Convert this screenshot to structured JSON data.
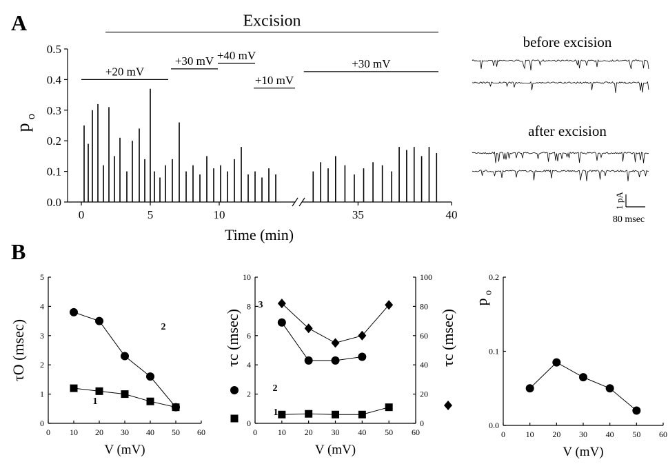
{
  "panel_labels": {
    "a": "A",
    "b": "B"
  },
  "traces": {
    "before": "before excision",
    "after": "after excision",
    "scale_y": "1 pA",
    "scale_x": "80 msec"
  },
  "chart_data": [
    {
      "type": "bar",
      "xlabel": "Time (min)",
      "ylabel": "p",
      "ylabel_sub": "o",
      "color": "#000000",
      "xlim": [
        [
          -1,
          15.5
        ],
        [
          32,
          40
        ]
      ],
      "xticks": [
        0,
        5,
        10,
        35,
        40
      ],
      "ylim": [
        0,
        0.5
      ],
      "yticks": [
        {
          "value": 0,
          "label": "0.0"
        },
        0.1,
        0.2,
        0.3,
        0.4,
        0.5
      ],
      "x": [
        0.2,
        0.5,
        0.8,
        1.2,
        1.6,
        2.0,
        2.4,
        2.8,
        3.3,
        3.7,
        4.2,
        4.6,
        5.0,
        5.3,
        5.7,
        6.1,
        6.6,
        7.1,
        7.6,
        8.1,
        8.6,
        9.1,
        9.6,
        10.1,
        10.6,
        11.1,
        11.6,
        12.1,
        12.6,
        13.1,
        13.6,
        14.1,
        32.6,
        33.0,
        33.4,
        33.8,
        34.3,
        34.8,
        35.3,
        35.8,
        36.3,
        36.8,
        37.2,
        37.6,
        38.0,
        38.4,
        38.8,
        39.2
      ],
      "values": [
        0.25,
        0.19,
        0.3,
        0.32,
        0.12,
        0.31,
        0.15,
        0.21,
        0.1,
        0.2,
        0.24,
        0.14,
        0.37,
        0.1,
        0.08,
        0.12,
        0.14,
        0.26,
        0.1,
        0.12,
        0.09,
        0.15,
        0.11,
        0.12,
        0.1,
        0.14,
        0.18,
        0.09,
        0.1,
        0.08,
        0.11,
        0.09,
        0.1,
        0.13,
        0.11,
        0.15,
        0.12,
        0.09,
        0.11,
        0.13,
        0.12,
        0.1,
        0.18,
        0.17,
        0.18,
        0.15,
        0.18,
        0.16
      ],
      "annotations": [
        {
          "text": "Excision",
          "x": [
            1.75,
            39.3
          ],
          "y": 0.555
        },
        {
          "text": "+20 mV",
          "x": [
            0,
            6.3
          ],
          "y": 0.4
        },
        {
          "text": "+30 mV",
          "x": [
            6.5,
            9.9
          ],
          "y": 0.435
        },
        {
          "text": "+40 mV",
          "x": [
            9.9,
            12.6
          ],
          "y": 0.453
        },
        {
          "text": "+10 mV",
          "x": [
            12.5,
            15.5
          ],
          "y": 0.372
        },
        {
          "text": "+30 mV",
          "x": [
            32.1,
            39.3
          ],
          "y": 0.426
        }
      ]
    },
    {
      "type": "line",
      "xlabel": "V (mV)",
      "ylabel": "τO (msec)",
      "xlim": [
        0,
        60
      ],
      "xticks": [
        0,
        10,
        20,
        30,
        40,
        50,
        60
      ],
      "ylim": [
        0,
        5
      ],
      "yticks": [
        0,
        1,
        2,
        3,
        4,
        5
      ],
      "series": [
        {
          "name": "2",
          "marker": "circle",
          "color": "#000000",
          "x": [
            10,
            20,
            30,
            40,
            50
          ],
          "values": [
            3.8,
            3.5,
            2.3,
            1.6,
            0.55
          ]
        },
        {
          "name": "1",
          "marker": "square",
          "color": "#000000",
          "x": [
            10,
            20,
            30,
            40,
            50
          ],
          "values": [
            1.2,
            1.1,
            1.0,
            0.75,
            0.55
          ]
        }
      ]
    },
    {
      "type": "line",
      "xlabel": "V (mV)",
      "ylabel": "τc (msec)",
      "y2label": "τc (msec)",
      "xlim": [
        0,
        60
      ],
      "xticks": [
        0,
        10,
        20,
        30,
        40,
        50,
        60
      ],
      "ylim": [
        0,
        10
      ],
      "yticks": [
        0,
        2,
        4,
        6,
        8,
        10
      ],
      "y2lim": [
        0,
        100
      ],
      "y2ticks": [
        0,
        20,
        40,
        60,
        80,
        100
      ],
      "series": [
        {
          "name": "3",
          "marker": "diamond",
          "color": "#000000",
          "axis": "y2",
          "x": [
            10,
            20,
            30,
            40,
            50
          ],
          "values": [
            82,
            65,
            55,
            60,
            81
          ]
        },
        {
          "name": "2",
          "marker": "circle",
          "color": "#000000",
          "x": [
            10,
            20,
            30,
            40
          ],
          "values": [
            6.9,
            4.3,
            4.3,
            4.55
          ]
        },
        {
          "name": "1",
          "marker": "square",
          "color": "#000000",
          "x": [
            10,
            20,
            30,
            40,
            50
          ],
          "values": [
            0.6,
            0.65,
            0.6,
            0.6,
            1.1
          ]
        }
      ]
    },
    {
      "type": "line",
      "xlabel": "V (mV)",
      "ylabel": "p",
      "ylabel_sub": "o",
      "xlim": [
        0,
        60
      ],
      "xticks": [
        0,
        10,
        20,
        30,
        40,
        50,
        60
      ],
      "ylim": [
        0,
        0.2
      ],
      "yticks": [
        {
          "value": 0,
          "label": "0.0"
        },
        0.1,
        0.2
      ],
      "series": [
        {
          "marker": "circle",
          "color": "#000000",
          "x": [
            10,
            20,
            30,
            40,
            50
          ],
          "values": [
            0.05,
            0.085,
            0.065,
            0.05,
            0.02
          ]
        }
      ]
    }
  ]
}
